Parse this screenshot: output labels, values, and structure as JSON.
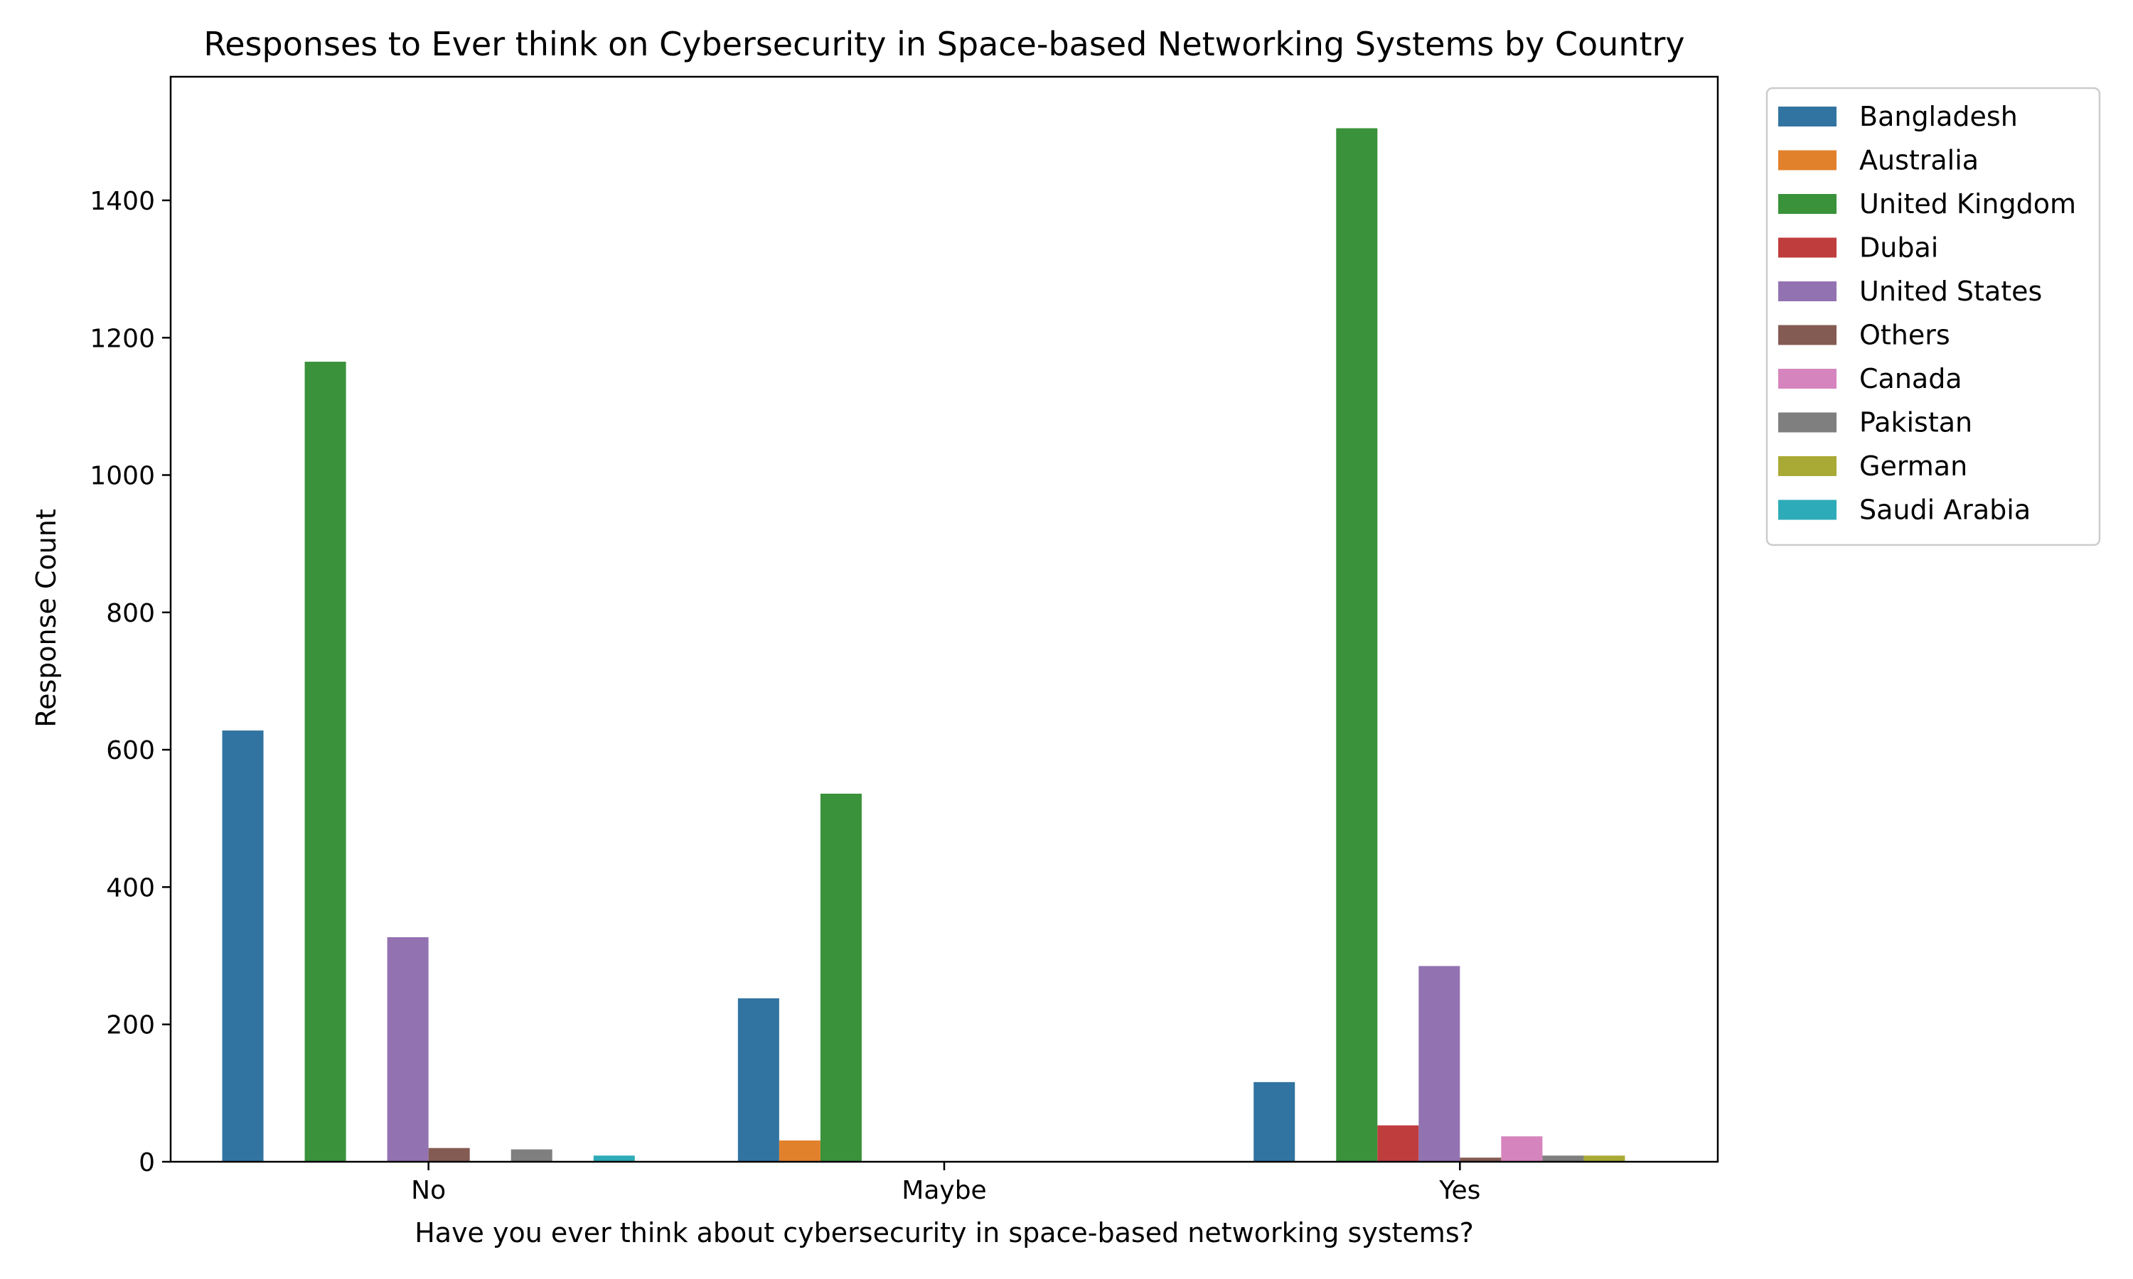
{
  "chart_data": {
    "type": "bar",
    "title": "Responses to Ever think on Cybersecurity in Space-based Networking Systems by Country",
    "xlabel": "Have you ever think about cybersecurity in space-based networking systems?",
    "ylabel": "Response Count",
    "categories": [
      "No",
      "Maybe",
      "Yes"
    ],
    "ylim": [
      0,
      1580
    ],
    "yticks": [
      0,
      200,
      400,
      600,
      800,
      1000,
      1200,
      1400
    ],
    "grid": false,
    "legend_placement": "outside-right-top",
    "series": [
      {
        "name": "Bangladesh",
        "color": "#3274a1",
        "values": [
          628,
          238,
          116
        ]
      },
      {
        "name": "Australia",
        "color": "#e1812c",
        "values": [
          0,
          31,
          0
        ]
      },
      {
        "name": "United Kingdom",
        "color": "#3a923a",
        "values": [
          1165,
          536,
          1505
        ]
      },
      {
        "name": "Dubai",
        "color": "#c03d3e",
        "values": [
          0,
          0,
          53
        ]
      },
      {
        "name": "United States",
        "color": "#9372b2",
        "values": [
          327,
          0,
          285
        ]
      },
      {
        "name": "Others",
        "color": "#845b53",
        "values": [
          20,
          0,
          6
        ]
      },
      {
        "name": "Canada",
        "color": "#d684bd",
        "values": [
          0,
          0,
          37
        ]
      },
      {
        "name": "Pakistan",
        "color": "#7f7f7f",
        "values": [
          18,
          0,
          9
        ]
      },
      {
        "name": "German",
        "color": "#a9aa35",
        "values": [
          0,
          0,
          9
        ]
      },
      {
        "name": "Saudi Arabia",
        "color": "#2eabb8",
        "values": [
          9,
          0,
          0
        ]
      }
    ]
  }
}
